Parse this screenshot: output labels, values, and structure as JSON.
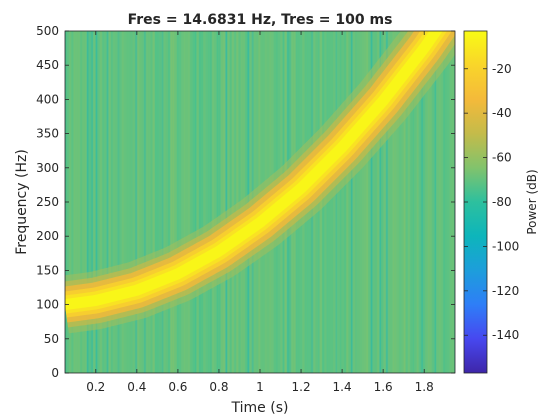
{
  "chart_data": {
    "type": "heatmap",
    "title": "Fres = 14.6831 Hz, Tres = 100 ms",
    "xlabel": "Time (s)",
    "ylabel": "Frequency (Hz)",
    "colorbar_label": "Power (dB)",
    "xlim": [
      0.05,
      1.95
    ],
    "ylim": [
      0,
      500
    ],
    "xticks": [
      0.2,
      0.4,
      0.6,
      0.8,
      1,
      1.2,
      1.4,
      1.6,
      1.8
    ],
    "xtick_labels": [
      "0.2",
      "0.4",
      "0.6",
      "0.8",
      "1",
      "1.2",
      "1.4",
      "1.6",
      "1.8"
    ],
    "yticks": [
      0,
      50,
      100,
      150,
      200,
      250,
      300,
      350,
      400,
      450,
      500
    ],
    "ytick_labels": [
      "0",
      "50",
      "100",
      "150",
      "200",
      "250",
      "300",
      "350",
      "400",
      "450",
      "500"
    ],
    "clim": [
      -157,
      -3
    ],
    "cticks": [
      -140,
      -120,
      -100,
      -80,
      -60,
      -40,
      -20
    ],
    "ctick_labels": [
      "-140",
      "-120",
      "-100",
      "-80",
      "-60",
      "-40",
      "-20"
    ],
    "colormap": "parula",
    "colormap_stops": [
      "#3e26a8",
      "#4748f0",
      "#2e7ef7",
      "#1d9edb",
      "#0db5bb",
      "#2dc09e",
      "#81c36c",
      "#c4bb4a",
      "#f4ba3a",
      "#f9d52a",
      "#f9fb15"
    ],
    "background_level_db": -70,
    "ridge": {
      "label": "chirp ridge (peak power)",
      "time_s": [
        0.05,
        0.2,
        0.4,
        0.6,
        0.8,
        1.0,
        1.2,
        1.4,
        1.6,
        1.8,
        1.95
      ],
      "frequency_hz": [
        100,
        106,
        121,
        145,
        178,
        220,
        270,
        330,
        398,
        475,
        540
      ],
      "peak_power_db": -5
    }
  }
}
